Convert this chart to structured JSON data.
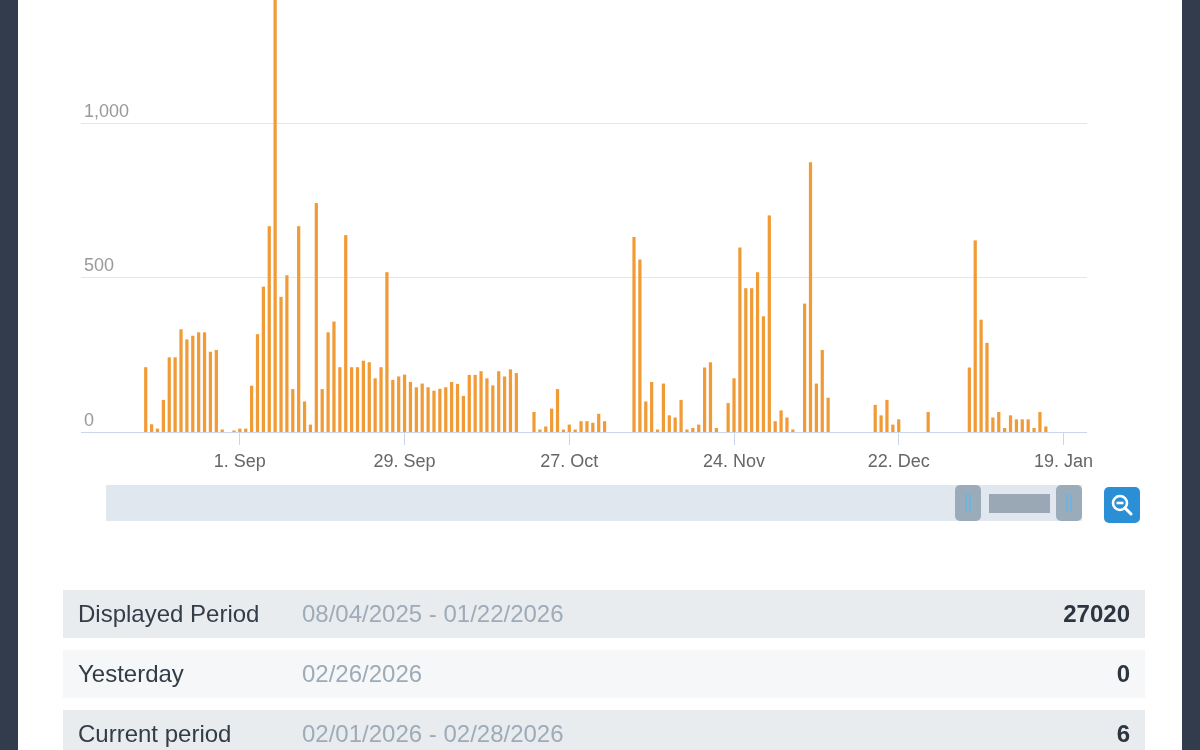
{
  "chart_data": {
    "type": "bar",
    "x": [
      "2025-08-16",
      "2025-08-17",
      "2025-08-18",
      "2025-08-19",
      "2025-08-20",
      "2025-08-21",
      "2025-08-22",
      "2025-08-23",
      "2025-08-24",
      "2025-08-25",
      "2025-08-26",
      "2025-08-27",
      "2025-08-28",
      "2025-08-29",
      "2025-08-30",
      "2025-08-31",
      "2025-09-01",
      "2025-09-02",
      "2025-09-03",
      "2025-09-04",
      "2025-09-05",
      "2025-09-06",
      "2025-09-07",
      "2025-09-08",
      "2025-09-09",
      "2025-09-10",
      "2025-09-11",
      "2025-09-12",
      "2025-09-13",
      "2025-09-14",
      "2025-09-15",
      "2025-09-16",
      "2025-09-17",
      "2025-09-18",
      "2025-09-19",
      "2025-09-20",
      "2025-09-21",
      "2025-09-22",
      "2025-09-23",
      "2025-09-24",
      "2025-09-25",
      "2025-09-26",
      "2025-09-27",
      "2025-09-28",
      "2025-09-29",
      "2025-09-30",
      "2025-10-01",
      "2025-10-02",
      "2025-10-03",
      "2025-10-04",
      "2025-10-05",
      "2025-10-06",
      "2025-10-07",
      "2025-10-08",
      "2025-10-09",
      "2025-10-10",
      "2025-10-11",
      "2025-10-12",
      "2025-10-13",
      "2025-10-14",
      "2025-10-15",
      "2025-10-16",
      "2025-10-17",
      "2025-10-18",
      "2025-10-19",
      "2025-10-20",
      "2025-10-21",
      "2025-10-22",
      "2025-10-23",
      "2025-10-24",
      "2025-10-25",
      "2025-10-26",
      "2025-10-27",
      "2025-10-28",
      "2025-10-29",
      "2025-10-30",
      "2025-10-31",
      "2025-11-01",
      "2025-11-02",
      "2025-11-03",
      "2025-11-04",
      "2025-11-05",
      "2025-11-06",
      "2025-11-07",
      "2025-11-08",
      "2025-11-09",
      "2025-11-10",
      "2025-11-11",
      "2025-11-12",
      "2025-11-13",
      "2025-11-14",
      "2025-11-15",
      "2025-11-16",
      "2025-11-17",
      "2025-11-18",
      "2025-11-19",
      "2025-11-20",
      "2025-11-21",
      "2025-11-22",
      "2025-11-23",
      "2025-11-24",
      "2025-11-25",
      "2025-11-26",
      "2025-11-27",
      "2025-11-28",
      "2025-11-29",
      "2025-11-30",
      "2025-12-01",
      "2025-12-02",
      "2025-12-03",
      "2025-12-04",
      "2025-12-05",
      "2025-12-06",
      "2025-12-07",
      "2025-12-08",
      "2025-12-09",
      "2025-12-10",
      "2025-12-11",
      "2025-12-12",
      "2025-12-13",
      "2025-12-14",
      "2025-12-15",
      "2025-12-16",
      "2025-12-17",
      "2025-12-18",
      "2025-12-19",
      "2025-12-20",
      "2025-12-21",
      "2025-12-22",
      "2025-12-23",
      "2025-12-24",
      "2025-12-25",
      "2025-12-26",
      "2025-12-27",
      "2025-12-28",
      "2025-12-29",
      "2025-12-30",
      "2025-12-31",
      "2026-01-01",
      "2026-01-02",
      "2026-01-03",
      "2026-01-04",
      "2026-01-05",
      "2026-01-06",
      "2026-01-07",
      "2026-01-08",
      "2026-01-09",
      "2026-01-10",
      "2026-01-11",
      "2026-01-12",
      "2026-01-13",
      "2026-01-14",
      "2026-01-15",
      "2026-01-16"
    ],
    "values": [
      210,
      25,
      11,
      104,
      242,
      242,
      333,
      300,
      312,
      323,
      323,
      260,
      266,
      8,
      0,
      5,
      11,
      11,
      150,
      317,
      471,
      667,
      1400,
      438,
      508,
      139,
      667,
      99,
      24,
      742,
      139,
      323,
      358,
      210,
      638,
      210,
      210,
      231,
      226,
      174,
      210,
      518,
      169,
      180,
      186,
      162,
      145,
      157,
      145,
      134,
      140,
      145,
      162,
      156,
      117,
      185,
      185,
      197,
      174,
      151,
      197,
      180,
      203,
      191,
      0,
      0,
      65,
      8,
      18,
      76,
      139,
      8,
      24,
      8,
      35,
      35,
      30,
      59,
      35,
      0,
      0,
      0,
      0,
      632,
      559,
      99,
      162,
      8,
      157,
      54,
      47,
      104,
      8,
      13,
      24,
      209,
      226,
      13,
      0,
      94,
      174,
      598,
      466,
      466,
      518,
      375,
      702,
      35,
      70,
      47,
      8,
      0,
      416,
      874,
      157,
      266,
      111,
      0,
      0,
      0,
      0,
      0,
      0,
      0,
      88,
      54,
      104,
      24,
      41,
      0,
      0,
      0,
      0,
      65,
      0,
      0,
      0,
      0,
      0,
      0,
      209,
      621,
      364,
      289,
      47,
      65,
      13,
      54,
      41,
      41,
      41,
      13,
      65,
      18
    ],
    "color": "#f19b37",
    "xlim": [
      "2025-08-05",
      "2026-01-23"
    ],
    "xticks": [
      {
        "value": "2025-09-01",
        "label": "1. Sep"
      },
      {
        "value": "2025-09-29",
        "label": "29. Sep"
      },
      {
        "value": "2025-10-27",
        "label": "27. Oct"
      },
      {
        "value": "2025-11-24",
        "label": "24. Nov"
      },
      {
        "value": "2025-12-22",
        "label": "22. Dec"
      },
      {
        "value": "2026-01-19",
        "label": "19. Jan"
      }
    ],
    "ylim": [
      0,
      1400
    ],
    "yticks": [
      0,
      500,
      {
        "value": 1000,
        "label": "1,000"
      }
    ],
    "grid": "y",
    "annotations": [
      "Displayed Period",
      "08/04/2025 - 01/22/2026",
      "27020",
      "Yesterday",
      "02/26/2026",
      "0",
      "Current period",
      "02/01/2026 - 02/28/2026",
      "6"
    ]
  }
}
